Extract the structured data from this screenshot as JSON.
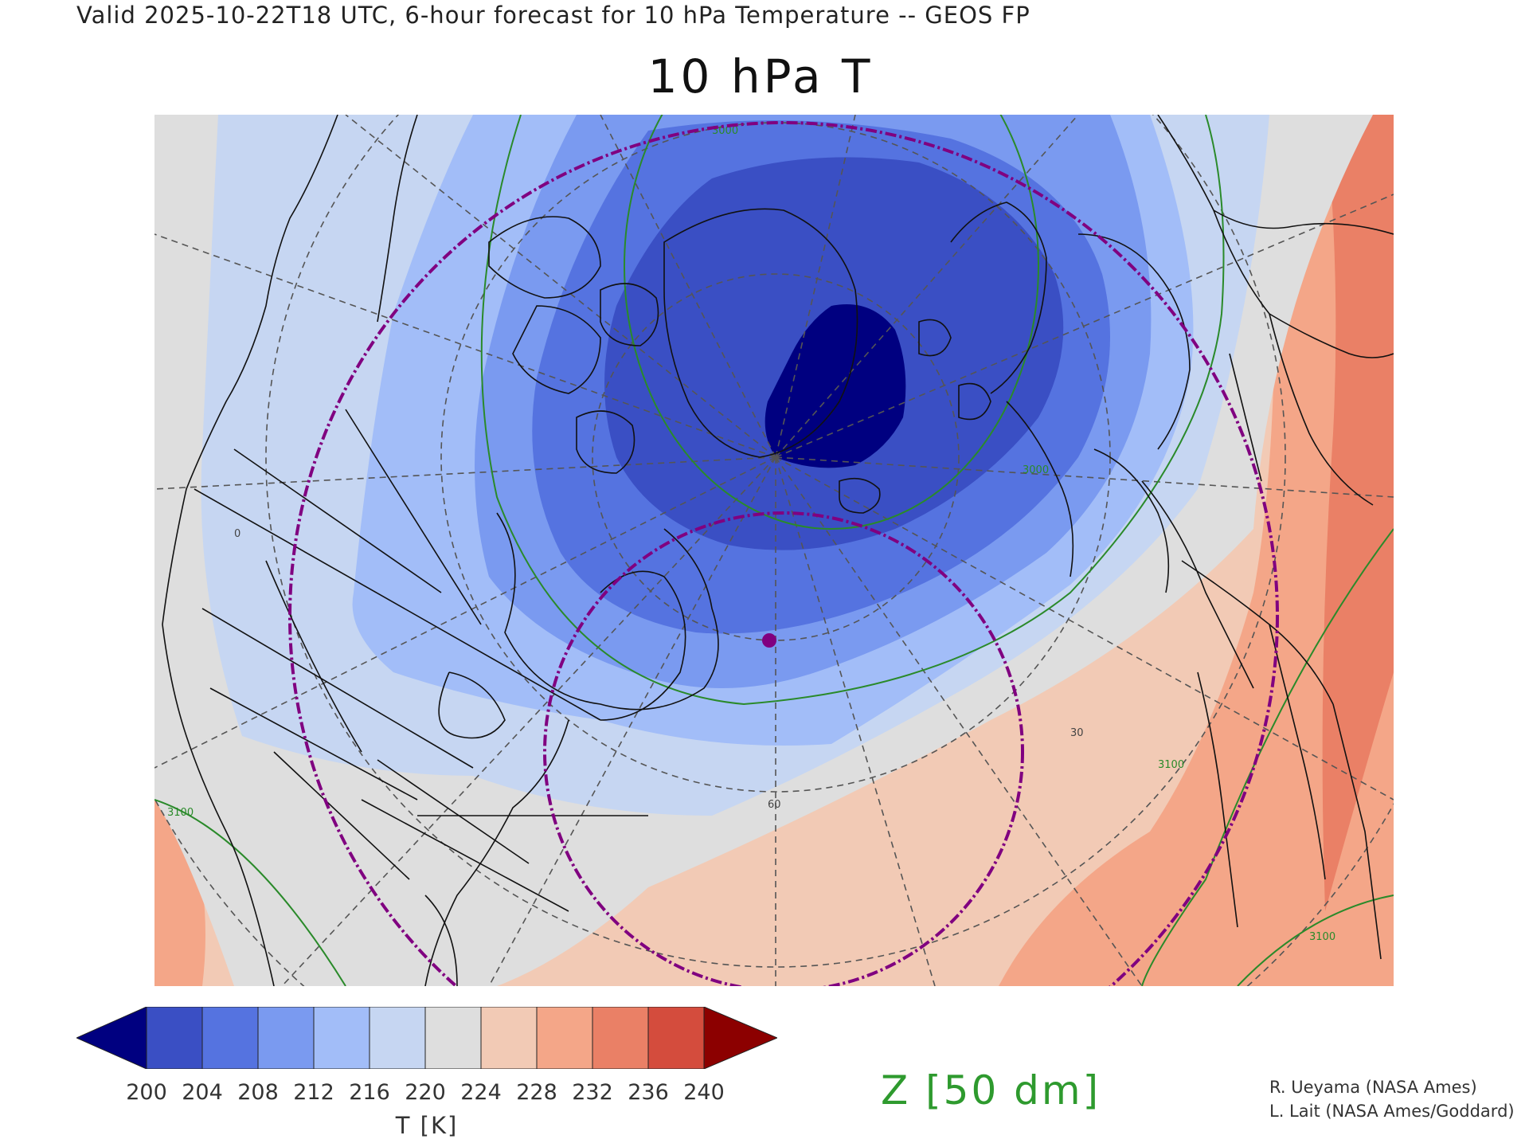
{
  "header": "Valid 2025-10-22T18 UTC, 6-hour forecast for 10 hPa Temperature -- GEOS FP",
  "title": "10 hPa T",
  "map": {
    "projection": "polar stereographic (North Pole)",
    "contour_labels": [
      "3000",
      "3000",
      "3100",
      "3100",
      "3100",
      "3100"
    ],
    "lat_labels": [
      "60",
      "30",
      "0"
    ],
    "colors": {
      "t_lt_200": "#000080",
      "t_200_204": "#3a4fc4",
      "t_204_208": "#5573e0",
      "t_208_212": "#7a9af0",
      "t_212_216": "#a2bdf8",
      "t_216_220": "#c6d6f2",
      "t_220_224": "#dedede",
      "t_224_228": "#f2cab5",
      "t_228_232": "#f4a688",
      "t_232_236": "#ea8066",
      "t_236_240": "#d44c3d",
      "t_gt_240": "#8c0000",
      "z_contour": "#2a8a2a",
      "circle": "#800080"
    }
  },
  "colorbar": {
    "ticks": [
      "200",
      "204",
      "208",
      "212",
      "216",
      "220",
      "224",
      "228",
      "232",
      "236",
      "240"
    ],
    "label": "T [K]"
  },
  "z_label": "Z [50 dm]",
  "credits": {
    "line1": "R. Ueyama (NASA Ames)",
    "line2": "L. Lait (NASA Ames/Goddard)"
  }
}
